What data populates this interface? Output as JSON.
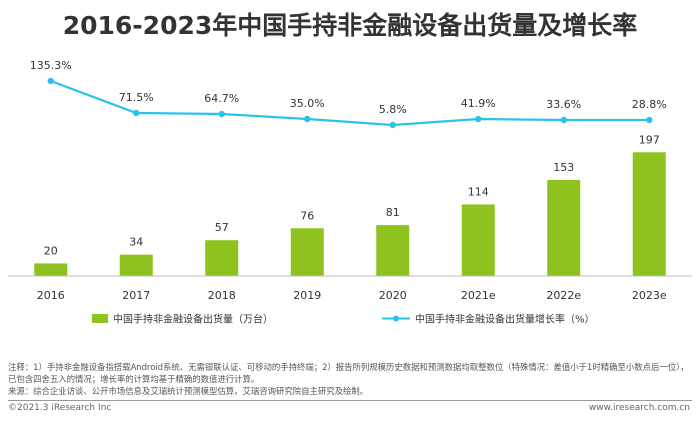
{
  "title": "2016-2023年中国手持非金融设备出货量及增长率",
  "chart_data": {
    "type": "bar",
    "categories": [
      "2016",
      "2017",
      "2018",
      "2019",
      "2020",
      "2021e",
      "2022e",
      "2023e"
    ],
    "series": [
      {
        "name": "中国手持非金融设备出货量（万台）",
        "type": "bar",
        "values": [
          20,
          34,
          57,
          76,
          81,
          114,
          153,
          197
        ],
        "labels": [
          "20",
          "34",
          "57",
          "76",
          "81",
          "114",
          "153",
          "197"
        ],
        "color": "#8dc21f"
      },
      {
        "name": "中国手持非金融设备出货量增长率（%）",
        "type": "line",
        "values": [
          135.3,
          71.5,
          64.7,
          35.0,
          5.8,
          41.9,
          33.6,
          28.8
        ],
        "labels": [
          "135.3%",
          "71.5%",
          "64.7%",
          "35.0%",
          "5.8%",
          "41.9%",
          "33.6%",
          "28.8%"
        ],
        "color": "#29c3ea"
      }
    ],
    "legend_position": "bottom",
    "gridlines": false
  },
  "notes": {
    "line1": "注释：1）手持非金融设备指搭载Android系统、无需银联认证、可移动的手持终端；2）报告所列规模历史数据和预测数据均取整数位（特殊情况：差值小于1时精确至小数点后一位），已包含四舍五入的情况；增长率的计算均基于精确的数值进行计算。",
    "line2": "来源：综合企业访谈、公开市场信息及艾瑞统计预测模型估算，艾瑞咨询研究院自主研究及绘制。"
  },
  "footer": {
    "copyright": "©2021.3 iResearch Inc",
    "site": "www.iresearch.com.cn"
  }
}
